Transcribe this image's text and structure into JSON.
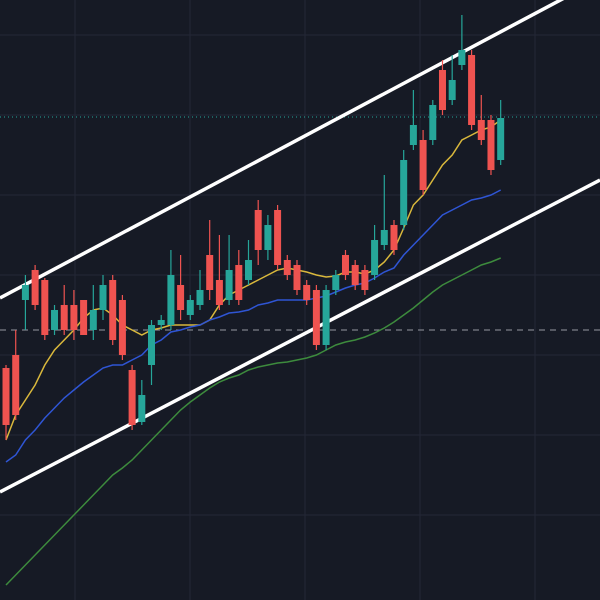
{
  "chart_data": {
    "type": "candlestick",
    "categories": [
      null,
      null,
      null,
      null,
      null,
      null,
      null,
      null,
      null,
      null,
      null,
      null,
      null,
      null,
      null,
      null,
      null,
      null,
      null,
      null,
      null,
      null,
      null,
      null,
      null,
      null,
      null,
      null,
      null,
      null,
      null,
      null,
      null,
      null,
      null,
      null,
      null,
      null,
      null,
      null,
      null,
      null,
      null,
      null,
      null,
      null,
      null,
      null,
      null,
      null,
      null,
      null
    ],
    "open": [
      232,
      245,
      300,
      330,
      320,
      270,
      295,
      295,
      300,
      270,
      290,
      320,
      300,
      230,
      178,
      235,
      275,
      275,
      315,
      285,
      295,
      345,
      320,
      300,
      335,
      320,
      390,
      350,
      390,
      340,
      335,
      315,
      310,
      255,
      310,
      345,
      335,
      330,
      325,
      355,
      375,
      375,
      455,
      460,
      460,
      530,
      500,
      535,
      545,
      480,
      480,
      440
    ],
    "high": [
      235,
      270,
      325,
      335,
      322,
      295,
      315,
      310,
      300,
      315,
      325,
      325,
      305,
      235,
      220,
      280,
      285,
      350,
      345,
      305,
      330,
      380,
      365,
      365,
      350,
      360,
      400,
      385,
      395,
      345,
      340,
      320,
      315,
      315,
      330,
      350,
      340,
      335,
      375,
      425,
      380,
      450,
      510,
      470,
      500,
      540,
      545,
      585,
      550,
      505,
      485,
      500
    ],
    "low": [
      160,
      180,
      270,
      290,
      260,
      265,
      265,
      260,
      265,
      260,
      280,
      255,
      240,
      170,
      175,
      215,
      270,
      270,
      280,
      280,
      290,
      300,
      290,
      295,
      295,
      315,
      335,
      340,
      330,
      320,
      305,
      295,
      250,
      250,
      305,
      320,
      310,
      305,
      320,
      350,
      345,
      370,
      450,
      405,
      455,
      485,
      495,
      530,
      470,
      455,
      425,
      435
    ],
    "close": [
      175,
      185,
      315,
      295,
      265,
      290,
      270,
      270,
      265,
      290,
      315,
      260,
      245,
      175,
      205,
      275,
      280,
      325,
      290,
      300,
      310,
      310,
      295,
      330,
      300,
      340,
      350,
      375,
      335,
      325,
      310,
      300,
      255,
      310,
      325,
      325,
      315,
      310,
      360,
      370,
      350,
      440,
      475,
      410,
      495,
      490,
      520,
      550,
      475,
      460,
      430,
      482
    ],
    "up_color": "#26a69a",
    "down_color": "#ef5350",
    "xlim": [
      -0.62,
      61.24
    ],
    "ylim": [
      0,
      600
    ],
    "series": [
      {
        "color": "#d9b83c",
        "values": [
          160,
          185,
          200,
          215,
          235,
          250,
          260,
          270,
          282,
          290,
          292,
          285,
          275,
          270,
          265,
          270,
          272,
          275,
          275,
          275,
          275,
          280,
          295,
          305,
          310,
          315,
          320,
          325,
          330,
          332,
          330,
          328,
          325,
          323,
          324,
          328,
          328,
          326,
          330,
          338,
          350,
          372,
          395,
          405,
          420,
          435,
          445,
          460,
          465,
          470,
          473,
          480
        ]
      },
      {
        "color": "#2f55d4",
        "values": [
          138,
          145,
          160,
          170,
          182,
          192,
          202,
          210,
          218,
          225,
          232,
          235,
          235,
          240,
          245,
          255,
          260,
          268,
          270,
          273,
          275,
          280,
          283,
          287,
          288,
          290,
          295,
          297,
          300,
          300,
          300,
          300,
          302,
          304,
          308,
          312,
          315,
          317,
          322,
          328,
          332,
          345,
          355,
          365,
          375,
          385,
          390,
          395,
          400,
          402,
          405,
          410
        ]
      },
      {
        "color": "#3d8b3d",
        "values": [
          15,
          25,
          35,
          45,
          55,
          65,
          75,
          85,
          95,
          105,
          115,
          125,
          132,
          140,
          150,
          160,
          170,
          180,
          190,
          198,
          205,
          212,
          218,
          222,
          225,
          230,
          233,
          235,
          237,
          238,
          240,
          242,
          245,
          250,
          255,
          258,
          260,
          263,
          267,
          272,
          278,
          285,
          292,
          300,
          308,
          315,
          320,
          325,
          330,
          335,
          338,
          342
        ]
      }
    ],
    "trendlines": [
      {
        "color": "#ffffff",
        "x": [
          -0.62,
          61.24
        ],
        "values": [
          302,
          621
        ]
      },
      {
        "color": "#ffffff",
        "x": [
          -0.62,
          61.24
        ],
        "values": [
          108,
          420
        ]
      }
    ],
    "hlines": [
      {
        "value": 483,
        "color": "#26a69a",
        "style": "dotted"
      },
      {
        "value": 270,
        "color": "#9598a1",
        "style": "dashed"
      }
    ]
  }
}
